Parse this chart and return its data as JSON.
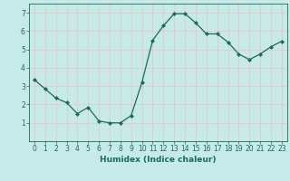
{
  "x": [
    0,
    1,
    2,
    3,
    4,
    5,
    6,
    7,
    8,
    9,
    10,
    11,
    12,
    13,
    14,
    15,
    16,
    17,
    18,
    19,
    20,
    21,
    22,
    23
  ],
  "y": [
    3.35,
    2.85,
    2.35,
    2.1,
    1.5,
    1.85,
    1.1,
    1.0,
    1.0,
    1.4,
    3.2,
    5.5,
    6.3,
    6.95,
    6.95,
    6.45,
    5.85,
    5.85,
    5.4,
    4.75,
    4.45,
    4.75,
    5.15,
    5.45
  ],
  "line_color": "#1a6b5a",
  "marker": "D",
  "markersize": 2.0,
  "linewidth": 0.9,
  "xlabel": "Humidex (Indice chaleur)",
  "xlabel_fontsize": 6.5,
  "xlim": [
    -0.5,
    23.5
  ],
  "ylim": [
    0,
    7.5
  ],
  "yticks": [
    1,
    2,
    3,
    4,
    5,
    6,
    7
  ],
  "xticks": [
    0,
    1,
    2,
    3,
    4,
    5,
    6,
    7,
    8,
    9,
    10,
    11,
    12,
    13,
    14,
    15,
    16,
    17,
    18,
    19,
    20,
    21,
    22,
    23
  ],
  "bg_color": "#c5eae8",
  "grid_color": "#e8c8c8",
  "tick_color": "#1a6b5a",
  "label_color": "#1a6b5a",
  "tick_fontsize": 5.5
}
